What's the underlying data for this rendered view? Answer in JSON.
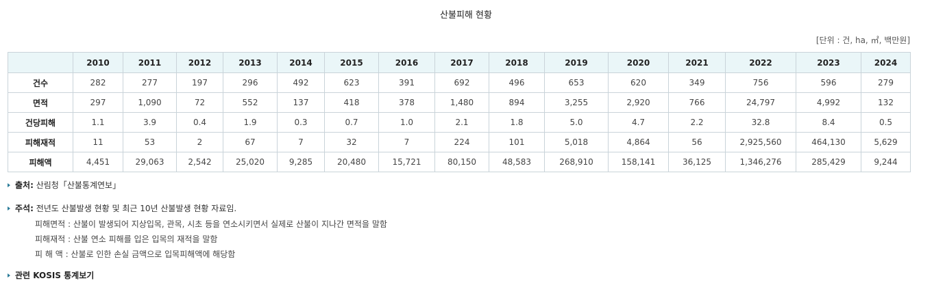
{
  "title": "산불피해 현황",
  "unit": "[단위 : 건, ha, ㎡, 백만원]",
  "table": {
    "years": [
      "2010",
      "2011",
      "2012",
      "2013",
      "2014",
      "2015",
      "2016",
      "2017",
      "2018",
      "2019",
      "2020",
      "2021",
      "2022",
      "2023",
      "2024"
    ],
    "rows": [
      {
        "label": "건수",
        "values": [
          "282",
          "277",
          "197",
          "296",
          "492",
          "623",
          "391",
          "692",
          "496",
          "653",
          "620",
          "349",
          "756",
          "596",
          "279"
        ]
      },
      {
        "label": "면적",
        "values": [
          "297",
          "1,090",
          "72",
          "552",
          "137",
          "418",
          "378",
          "1,480",
          "894",
          "3,255",
          "2,920",
          "766",
          "24,797",
          "4,992",
          "132"
        ]
      },
      {
        "label": "건당피해",
        "values": [
          "1.1",
          "3.9",
          "0.4",
          "1.9",
          "0.3",
          "0.7",
          "1.0",
          "2.1",
          "1.8",
          "5.0",
          "4.7",
          "2.2",
          "32.8",
          "8.4",
          "0.5"
        ]
      },
      {
        "label": "피해재적",
        "values": [
          "11",
          "53",
          "2",
          "67",
          "7",
          "32",
          "7",
          "224",
          "101",
          "5,018",
          "4,864",
          "56",
          "2,925,560",
          "464,130",
          "5,629"
        ]
      },
      {
        "label": "피해액",
        "values": [
          "4,451",
          "29,063",
          "2,542",
          "25,020",
          "9,285",
          "20,480",
          "15,721",
          "80,150",
          "48,583",
          "268,910",
          "158,141",
          "36,125",
          "1,346,276",
          "285,429",
          "9,244"
        ]
      }
    ]
  },
  "source": {
    "label": "출처:",
    "text": "산림청「산불통계연보」"
  },
  "notes": {
    "label": "주석:",
    "text": "전년도 산불발생 현황 및 최근 10년 산불발생 현황 자료임.",
    "details": [
      "피해면적 : 산불이 발생되어 지상입목, 관목, 시초 등을 연소시키면서 실제로 산불이 지나간 면적을 말함",
      "피해재적 : 산불 연소 피해를 입은 입목의 재적을 말함",
      "피 해 액 : 산불로 인한 손실 금액으로 입목피해액에 해당함"
    ]
  },
  "kosis_link": "관련 KOSIS 통계보기",
  "colors": {
    "header_bg": "#eaf6f8",
    "border": "#c9d3d9",
    "bullet": "#2b7c99"
  },
  "icons": {
    "bullet": "triangle-bullet-icon"
  }
}
